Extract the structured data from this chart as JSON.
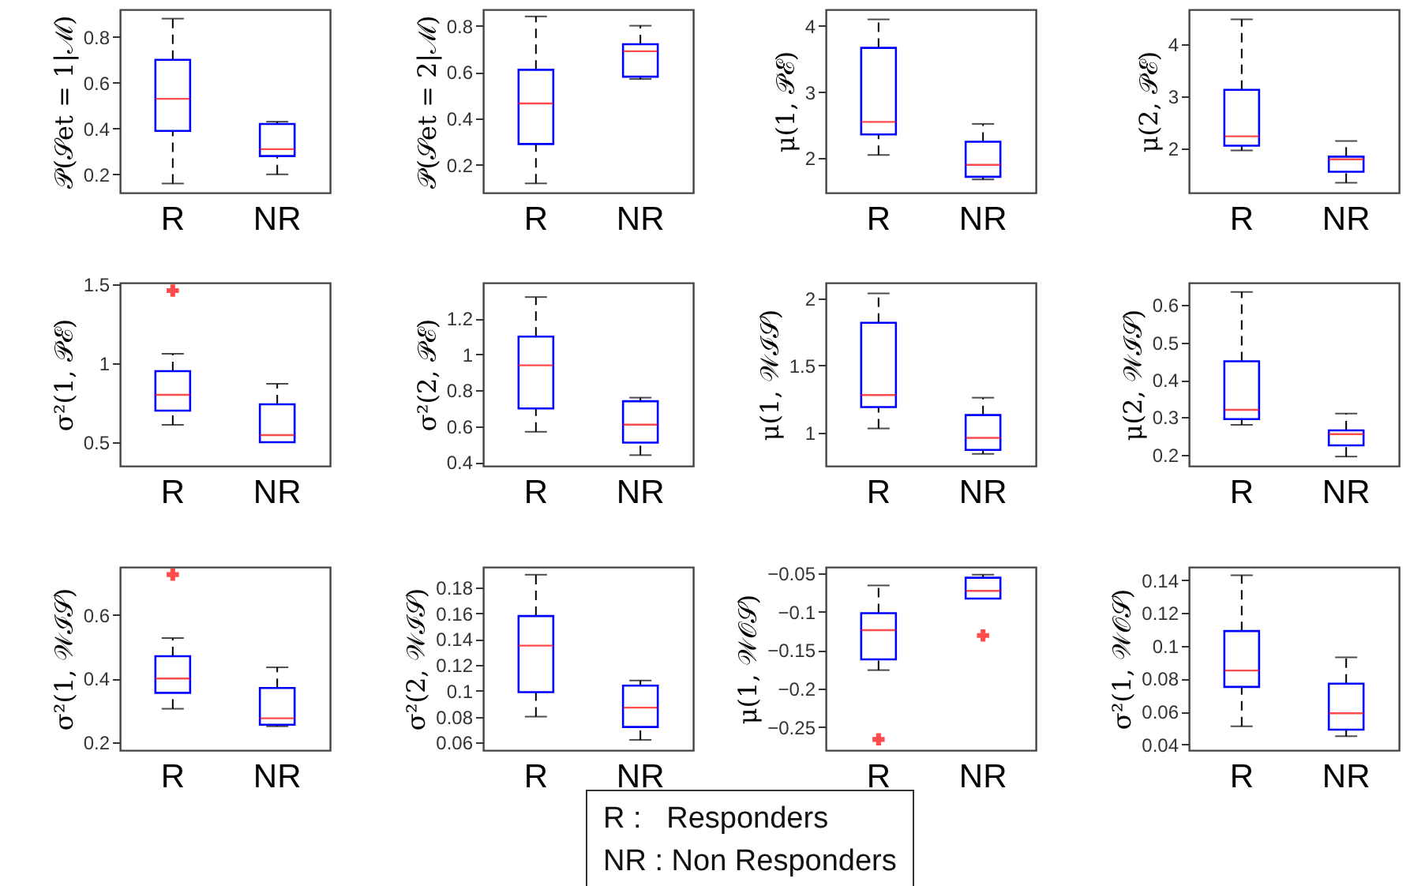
{
  "chart_data": [
    {
      "type": "box",
      "ylabel": "𝒫(𝒮et = 1|ℳ)",
      "categories": [
        "R",
        "NR"
      ],
      "ylim": [
        0.12,
        0.92
      ],
      "yticks": [
        0.2,
        0.4,
        0.6,
        0.8
      ],
      "series": [
        {
          "color": "#0000ff",
          "boxes": [
            {
              "low": 0.16,
              "q1": 0.39,
              "median": 0.53,
              "q3": 0.7,
              "high": 0.88
            },
            {
              "low": 0.2,
              "q1": 0.28,
              "median": 0.31,
              "q3": 0.42,
              "high": 0.43
            }
          ]
        }
      ]
    },
    {
      "type": "box",
      "ylabel": "𝒫(𝒮et = 2|ℳ)",
      "categories": [
        "R",
        "NR"
      ],
      "ylim": [
        0.08,
        0.87
      ],
      "yticks": [
        0.2,
        0.4,
        0.6,
        0.8
      ],
      "series": [
        {
          "color": "#0000ff",
          "boxes": [
            {
              "low": 0.12,
              "q1": 0.29,
              "median": 0.465,
              "q3": 0.61,
              "high": 0.84
            },
            {
              "low": 0.57,
              "q1": 0.58,
              "median": 0.69,
              "q3": 0.72,
              "high": 0.8
            }
          ]
        }
      ]
    },
    {
      "type": "box",
      "ylabel": "μ(1, 𝒫ℰ)",
      "categories": [
        "R",
        "NR"
      ],
      "ylim": [
        1.48,
        4.25
      ],
      "yticks": [
        2,
        3,
        4
      ],
      "series": [
        {
          "color": "#0000ff",
          "boxes": [
            {
              "low": 2.05,
              "q1": 2.36,
              "median": 2.55,
              "q3": 3.67,
              "high": 4.1
            },
            {
              "low": 1.68,
              "q1": 1.72,
              "median": 1.9,
              "q3": 2.25,
              "high": 2.52
            }
          ]
        }
      ]
    },
    {
      "type": "box",
      "ylabel": "μ(2, 𝒫ℰ)",
      "categories": [
        "R",
        "NR"
      ],
      "ylim": [
        1.16,
        4.67
      ],
      "yticks": [
        2,
        3,
        4
      ],
      "series": [
        {
          "color": "#0000ff",
          "boxes": [
            {
              "low": 1.97,
              "q1": 2.06,
              "median": 2.24,
              "q3": 3.13,
              "high": 4.48
            },
            {
              "low": 1.35,
              "q1": 1.56,
              "median": 1.8,
              "q3": 1.85,
              "high": 2.15
            }
          ]
        }
      ]
    },
    {
      "type": "box",
      "ylabel": "σ²(1, 𝒫ℰ)",
      "categories": [
        "R",
        "NR"
      ],
      "ylim": [
        0.35,
        1.51
      ],
      "yticks": [
        0.5,
        1,
        1.5
      ],
      "series": [
        {
          "color": "#0000ff",
          "boxes": [
            {
              "low": 0.61,
              "q1": 0.7,
              "median": 0.8,
              "q3": 0.95,
              "high": 1.06,
              "outliers": [
                1.46
              ]
            },
            {
              "low": 0.5,
              "q1": 0.5,
              "median": 0.545,
              "q3": 0.74,
              "high": 0.87
            }
          ]
        }
      ]
    },
    {
      "type": "box",
      "ylabel": "σ²(2, 𝒫ℰ)",
      "categories": [
        "R",
        "NR"
      ],
      "ylim": [
        0.38,
        1.4
      ],
      "yticks": [
        0.4,
        0.6,
        0.8,
        1,
        1.2
      ],
      "series": [
        {
          "color": "#0000ff",
          "boxes": [
            {
              "low": 0.57,
              "q1": 0.7,
              "median": 0.94,
              "q3": 1.1,
              "high": 1.32
            },
            {
              "low": 0.44,
              "q1": 0.51,
              "median": 0.61,
              "q3": 0.74,
              "high": 0.76
            }
          ]
        }
      ]
    },
    {
      "type": "box",
      "ylabel": "μ(1, 𝒲ℐ𝒮)",
      "categories": [
        "R",
        "NR"
      ],
      "ylim": [
        0.75,
        2.12
      ],
      "yticks": [
        1,
        1.5,
        2
      ],
      "series": [
        {
          "color": "#0000ff",
          "boxes": [
            {
              "low": 1.03,
              "q1": 1.19,
              "median": 1.28,
              "q3": 1.82,
              "high": 2.04
            },
            {
              "low": 0.84,
              "q1": 0.87,
              "median": 0.96,
              "q3": 1.13,
              "high": 1.26
            }
          ]
        }
      ]
    },
    {
      "type": "box",
      "ylabel": "μ(2, 𝒲ℐ𝒮)",
      "categories": [
        "R",
        "NR"
      ],
      "ylim": [
        0.17,
        0.66
      ],
      "yticks": [
        0.2,
        0.3,
        0.4,
        0.5,
        0.6
      ],
      "series": [
        {
          "color": "#0000ff",
          "boxes": [
            {
              "low": 0.28,
              "q1": 0.295,
              "median": 0.32,
              "q3": 0.45,
              "high": 0.635
            },
            {
              "low": 0.195,
              "q1": 0.225,
              "median": 0.255,
              "q3": 0.265,
              "high": 0.31
            }
          ]
        }
      ]
    },
    {
      "type": "box",
      "ylabel": "σ²(1, 𝒲ℐ𝒮)",
      "categories": [
        "R",
        "NR"
      ],
      "ylim": [
        0.175,
        0.75
      ],
      "yticks": [
        0.2,
        0.4,
        0.6
      ],
      "series": [
        {
          "color": "#0000ff",
          "boxes": [
            {
              "low": 0.305,
              "q1": 0.355,
              "median": 0.4,
              "q3": 0.47,
              "high": 0.527,
              "outliers": [
                0.726
              ]
            },
            {
              "low": 0.25,
              "q1": 0.255,
              "median": 0.275,
              "q3": 0.37,
              "high": 0.435
            }
          ]
        }
      ]
    },
    {
      "type": "box",
      "ylabel": "σ²(2, 𝒲ℐ𝒮)",
      "categories": [
        "R",
        "NR"
      ],
      "ylim": [
        0.054,
        0.196
      ],
      "yticks": [
        0.06,
        0.08,
        0.1,
        0.12,
        0.14,
        0.16,
        0.18
      ],
      "series": [
        {
          "color": "#0000ff",
          "boxes": [
            {
              "low": 0.08,
              "q1": 0.099,
              "median": 0.135,
              "q3": 0.158,
              "high": 0.19
            },
            {
              "low": 0.062,
              "q1": 0.072,
              "median": 0.087,
              "q3": 0.104,
              "high": 0.108
            }
          ]
        }
      ]
    },
    {
      "type": "box",
      "ylabel": "μ(1, 𝒲𝒪𝒮)",
      "categories": [
        "R",
        "NR"
      ],
      "ylim": [
        -0.28,
        -0.042
      ],
      "yticks": [
        -0.25,
        -0.2,
        -0.15,
        -0.1,
        -0.05
      ],
      "series": [
        {
          "color": "#0000ff",
          "boxes": [
            {
              "low": -0.176,
              "q1": -0.162,
              "median": -0.124,
              "q3": -0.102,
              "high": -0.066,
              "outliers": [
                -0.266
              ]
            },
            {
              "low": -0.083,
              "q1": -0.083,
              "median": -0.073,
              "q3": -0.056,
              "high": -0.052,
              "outliers": [
                -0.131
              ]
            }
          ]
        }
      ]
    },
    {
      "type": "box",
      "ylabel": "σ²(1, 𝒲𝒪𝒮)",
      "categories": [
        "R",
        "NR"
      ],
      "ylim": [
        0.0365,
        0.148
      ],
      "yticks": [
        0.04,
        0.06,
        0.08,
        0.1,
        0.12,
        0.14
      ],
      "series": [
        {
          "color": "#0000ff",
          "boxes": [
            {
              "low": 0.051,
              "q1": 0.075,
              "median": 0.085,
              "q3": 0.109,
              "high": 0.143
            },
            {
              "low": 0.045,
              "q1": 0.049,
              "median": 0.059,
              "q3": 0.077,
              "high": 0.093
            }
          ]
        }
      ]
    },
    {
      "type": "other",
      "annotations": [
        "R :   Responders",
        "NR : Non Responders"
      ]
    }
  ]
}
